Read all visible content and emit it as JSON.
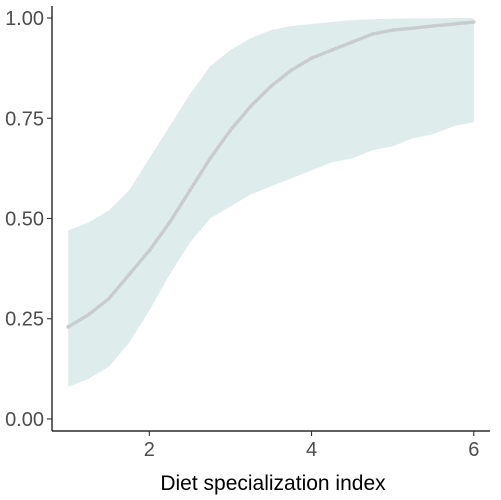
{
  "chart_data": {
    "type": "line",
    "title": "",
    "xlabel": "Diet specialization index",
    "ylabel": "",
    "xlim": [
      0.8,
      6.2
    ],
    "ylim": [
      -0.03,
      1.03
    ],
    "grid": false,
    "legend": "none",
    "x_ticks": [
      2,
      4,
      6
    ],
    "x_tick_labels": [
      "2",
      "4",
      "6"
    ],
    "y_ticks": [
      0,
      0.25,
      0.5,
      0.75,
      1
    ],
    "y_tick_labels": [
      "0.00",
      "0.25",
      "0.50",
      "0.75",
      "1.00"
    ],
    "series": [
      {
        "role": "fit",
        "color": "#c8cccc",
        "x": [
          1.0,
          1.25,
          1.5,
          1.75,
          2.0,
          2.25,
          2.5,
          2.75,
          3.0,
          3.25,
          3.5,
          3.75,
          4.0,
          4.25,
          4.5,
          4.75,
          5.0,
          5.25,
          5.5,
          5.75,
          6.0
        ],
        "y": [
          0.23,
          0.26,
          0.3,
          0.36,
          0.42,
          0.49,
          0.57,
          0.65,
          0.72,
          0.78,
          0.83,
          0.87,
          0.9,
          0.92,
          0.94,
          0.96,
          0.97,
          0.975,
          0.98,
          0.985,
          0.99
        ]
      },
      {
        "role": "ci-lower",
        "color": "#deecec",
        "x": [
          1.0,
          1.25,
          1.5,
          1.75,
          2.0,
          2.25,
          2.5,
          2.75,
          3.0,
          3.25,
          3.5,
          3.75,
          4.0,
          4.25,
          4.5,
          4.75,
          5.0,
          5.25,
          5.5,
          5.75,
          6.0
        ],
        "y": [
          0.08,
          0.1,
          0.13,
          0.19,
          0.27,
          0.36,
          0.44,
          0.5,
          0.53,
          0.56,
          0.58,
          0.6,
          0.62,
          0.64,
          0.65,
          0.67,
          0.68,
          0.7,
          0.71,
          0.73,
          0.74
        ]
      },
      {
        "role": "ci-upper",
        "color": "#deecec",
        "x": [
          1.0,
          1.25,
          1.5,
          1.75,
          2.0,
          2.25,
          2.5,
          2.75,
          3.0,
          3.25,
          3.5,
          3.75,
          4.0,
          4.25,
          4.5,
          4.75,
          5.0,
          5.25,
          5.5,
          5.75,
          6.0
        ],
        "y": [
          0.47,
          0.49,
          0.52,
          0.57,
          0.65,
          0.73,
          0.81,
          0.88,
          0.92,
          0.95,
          0.97,
          0.98,
          0.985,
          0.99,
          0.995,
          0.997,
          0.998,
          0.999,
          0.999,
          1.0,
          1.0
        ]
      }
    ],
    "colors": {
      "ribbon": "#deecec",
      "line": "#c8cccc",
      "axis": "#000000",
      "tick_text": "#4d4d4d"
    }
  }
}
